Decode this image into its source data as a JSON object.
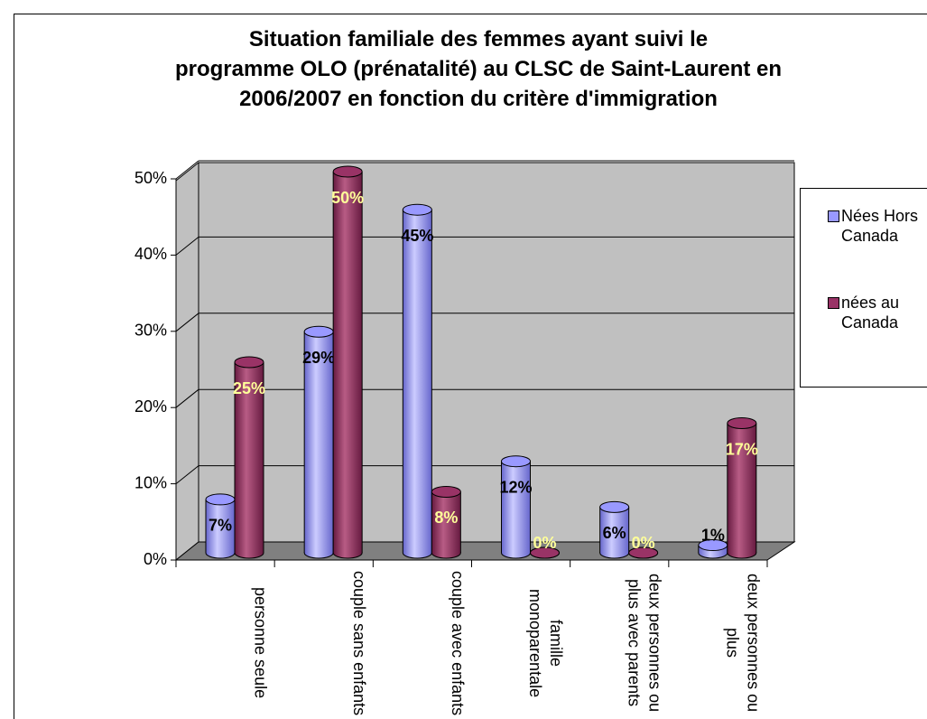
{
  "chart_data": {
    "type": "bar3d",
    "title": "Situation familiale des femmes ayant suivi le programme OLO (prénatalité) au CLSC de Saint-Laurent en 2006/2007 en fonction du critère d'immigration",
    "categories": [
      "personne seule",
      "couple sans enfants",
      "couple avec enfants",
      "famille monoparentale",
      "deux personnes ou plus avec parents",
      "deux personnes ou plus"
    ],
    "series": [
      {
        "name": "Nées Hors Canada",
        "color": "#9999ff",
        "values": [
          7,
          29,
          45,
          12,
          6,
          1
        ],
        "value_labels": [
          "7%",
          "29%",
          "45%",
          "12%",
          "6%",
          "1%"
        ]
      },
      {
        "name": "nées au Canada",
        "color": "#993366",
        "values": [
          25,
          50,
          8,
          0,
          0,
          17
        ],
        "value_labels": [
          "25%",
          "50%",
          "8%",
          "0%",
          "0%",
          "17%"
        ]
      }
    ],
    "ylim": [
      0,
      50
    ],
    "yticks": [
      {
        "value": 0,
        "label": "0%"
      },
      {
        "value": 10,
        "label": "10%"
      },
      {
        "value": 20,
        "label": "20%"
      },
      {
        "value": 30,
        "label": "30%"
      },
      {
        "value": 40,
        "label": "40%"
      },
      {
        "value": 50,
        "label": "50%"
      }
    ],
    "grid": true,
    "legend": "right"
  }
}
